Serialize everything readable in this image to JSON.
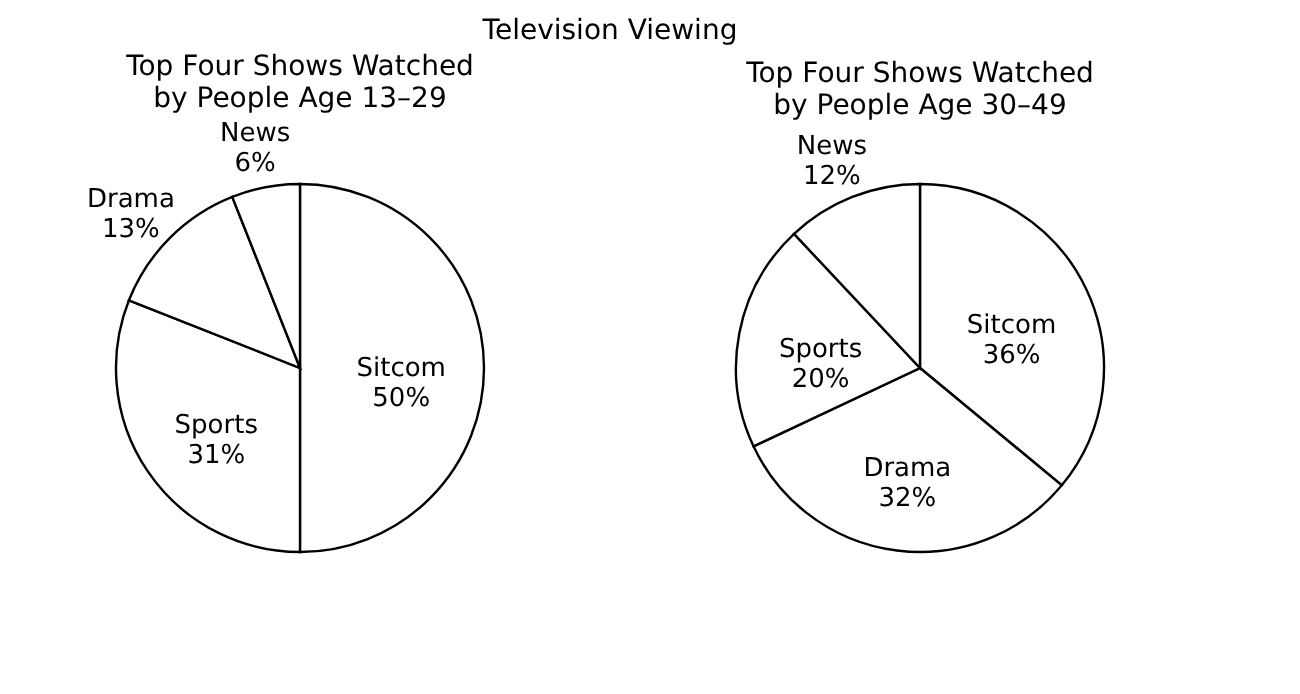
{
  "chart_data": [
    {
      "type": "pie",
      "title": "Top Four Shows Watched by People Age 13–29",
      "annotations": [
        "Television Viewing"
      ],
      "categories": [
        "Sitcom",
        "Sports",
        "Drama",
        "News"
      ],
      "values": [
        50,
        31,
        13,
        6
      ],
      "value_labels": [
        "50%",
        "31%",
        "13%",
        "6%"
      ],
      "colors": [
        "#ffffff",
        "#ffffff",
        "#ffffff",
        "#ffffff"
      ]
    },
    {
      "type": "pie",
      "title": "Top Four Shows Watched by People Age 30–49",
      "categories": [
        "Sitcom",
        "Drama",
        "Sports",
        "News"
      ],
      "values": [
        36,
        32,
        20,
        12
      ],
      "value_labels": [
        "36%",
        "32%",
        "20%",
        "12%"
      ],
      "colors": [
        "#ffffff",
        "#ffffff",
        "#ffffff",
        "#ffffff"
      ]
    }
  ]
}
